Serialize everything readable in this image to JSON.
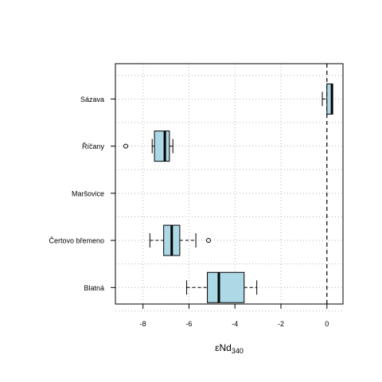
{
  "chart_data": {
    "type": "boxplot",
    "orientation": "horizontal",
    "xlabel_main": "εNd",
    "xlabel_sub": "340",
    "xlim": [
      -9.2,
      0.7
    ],
    "xticks": [
      -8,
      -6,
      -4,
      -2,
      0
    ],
    "tick_labels": [
      "-8",
      "-6",
      "-4",
      "-2",
      "0"
    ],
    "grid": true,
    "reference_line_x": 0,
    "categories": [
      "Sázava",
      "Říčany",
      "Maršovice",
      "Čertovo břemeno",
      "Blatná"
    ],
    "boxes": [
      {
        "label": "Sázava",
        "whisker_low": -0.2,
        "q1": 0.0,
        "median": 0.22,
        "q3": 0.25,
        "whisker_high": 0.25,
        "outliers": []
      },
      {
        "label": "Říčany",
        "whisker_low": -7.6,
        "q1": -7.5,
        "median": -7.05,
        "q3": -6.85,
        "whisker_high": -6.7,
        "outliers": [
          -8.75
        ]
      },
      {
        "label": "Maršovice",
        "whisker_low": null,
        "q1": null,
        "median": null,
        "q3": null,
        "whisker_high": null,
        "outliers": []
      },
      {
        "label": "Čertovo břemeno",
        "whisker_low": -7.7,
        "q1": -7.1,
        "median": -6.75,
        "q3": -6.4,
        "whisker_high": -5.7,
        "outliers": [
          -5.15
        ]
      },
      {
        "label": "Blatná",
        "whisker_low": -6.1,
        "q1": -5.2,
        "median": -4.7,
        "q3": -3.6,
        "whisker_high": -3.05,
        "outliers": []
      }
    ],
    "colors": {
      "box_fill": "#add8e6",
      "stroke": "#000000",
      "grid": "#b3b3b3"
    }
  }
}
